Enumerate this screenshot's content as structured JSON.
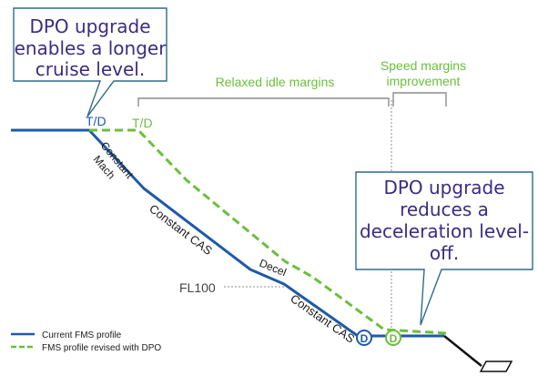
{
  "colors": {
    "current_profile": "#1f5aa6",
    "dpo_profile": "#6bbf3c",
    "callout_text": "#3c2b82",
    "callout_border": "#2e6b8a",
    "bracket": "#8c8c8c",
    "runway": "#111111"
  },
  "callouts": {
    "top_left": [
      "DPO upgrade",
      "enables a longer",
      "cruise level."
    ],
    "bottom_right": [
      "DPO upgrade",
      "reduces a",
      "deceleration level-",
      "off."
    ]
  },
  "brackets": {
    "relaxed_idle": "Relaxed idle margins",
    "speed_margins_line1": "Speed margins",
    "speed_margins_line2": "improvement"
  },
  "markers": {
    "td_current": "T/D",
    "td_dpo": "T/D",
    "decel_point_current": "D",
    "decel_point_dpo": "D"
  },
  "segments": {
    "constant_mach_line1": "Constant",
    "constant_mach_line2": "Mach",
    "constant_cas_upper": "Constant CAS",
    "decel": "Decel",
    "constant_cas_lower": "Constant CAS"
  },
  "fl_label": "FL100",
  "legend": {
    "current": "Current FMS profile",
    "dpo": "FMS profile revised with DPO"
  }
}
